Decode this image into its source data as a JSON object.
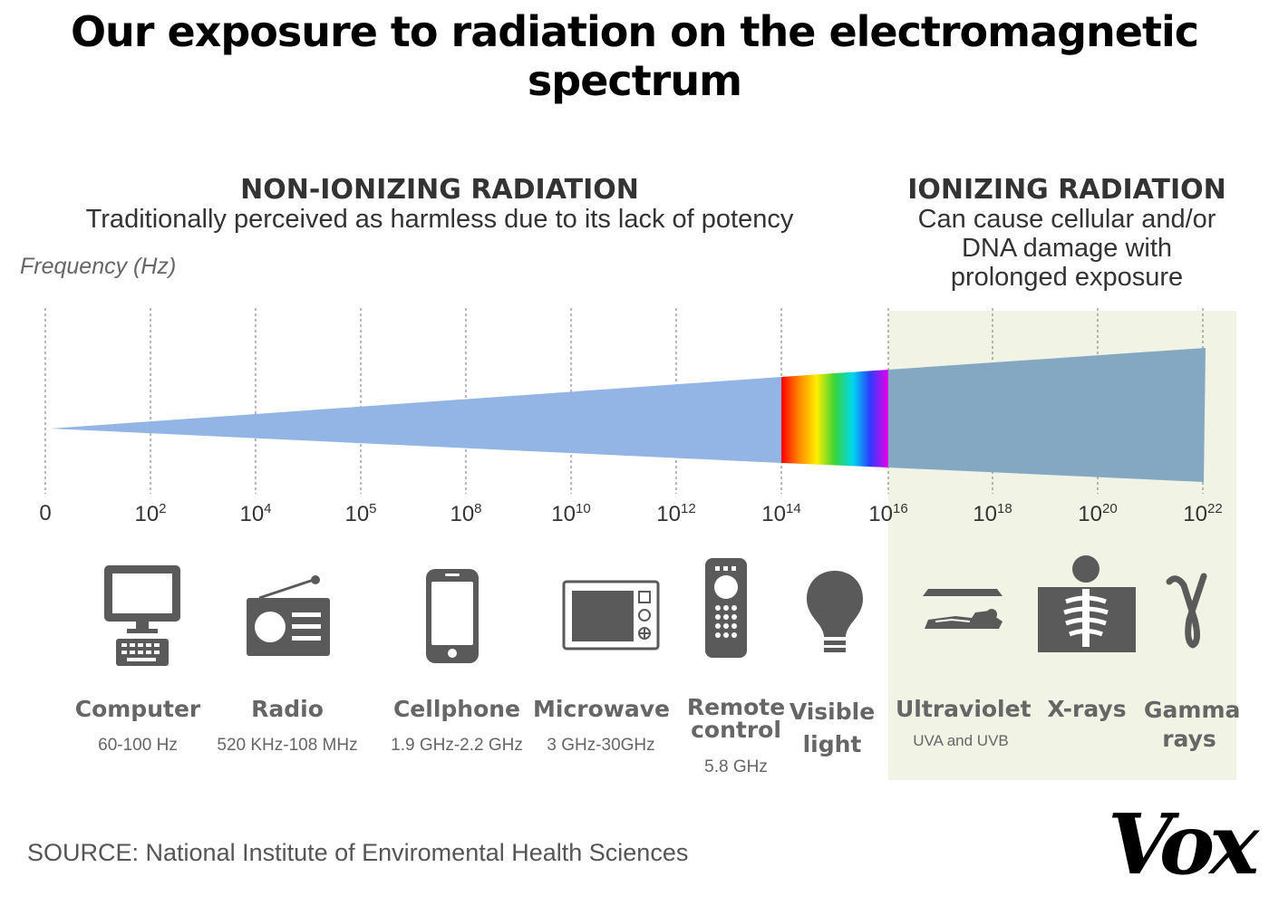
{
  "title": "Our exposure to radiation on the electromagnetic spectrum",
  "non_ionizing": {
    "heading": "NON-IONIZING RADIATION",
    "subtitle": "Traditionally perceived as harmless due to its lack of potency"
  },
  "ionizing": {
    "heading": "IONIZING RADIATION",
    "subtitle_lines": [
      "Can cause cellular and/or",
      "DNA damage with",
      "prolonged exposure"
    ]
  },
  "axis_label": "Frequency (Hz)",
  "ticks": [
    {
      "base": "0",
      "exp": ""
    },
    {
      "base": "10",
      "exp": "2"
    },
    {
      "base": "10",
      "exp": "4"
    },
    {
      "base": "10",
      "exp": "5"
    },
    {
      "base": "10",
      "exp": "8"
    },
    {
      "base": "10",
      "exp": "10"
    },
    {
      "base": "10",
      "exp": "12"
    },
    {
      "base": "10",
      "exp": "14"
    },
    {
      "base": "10",
      "exp": "16"
    },
    {
      "base": "10",
      "exp": "18"
    },
    {
      "base": "10",
      "exp": "20"
    },
    {
      "base": "10",
      "exp": "22"
    }
  ],
  "sources": [
    {
      "name_lines": [
        "Computer"
      ],
      "detail": "60-100 Hz",
      "icon": "computer-icon"
    },
    {
      "name_lines": [
        "Radio"
      ],
      "detail": "520 KHz-108 MHz",
      "icon": "radio-icon"
    },
    {
      "name_lines": [
        "Cellphone"
      ],
      "detail": "1.9 GHz-2.2 GHz",
      "icon": "cellphone-icon"
    },
    {
      "name_lines": [
        "Microwave"
      ],
      "detail": "3 GHz-30GHz",
      "icon": "microwave-icon"
    },
    {
      "name_lines": [
        "Remote",
        "control"
      ],
      "detail": "5.8 GHz",
      "icon": "remote-control-icon"
    },
    {
      "name_lines": [
        "Visible",
        "light"
      ],
      "detail": "",
      "icon": "lightbulb-icon"
    },
    {
      "name_lines": [
        "Ultraviolet"
      ],
      "detail": "UVA and UVB",
      "icon": "tanning-bed-icon"
    },
    {
      "name_lines": [
        "X-rays"
      ],
      "detail": "",
      "icon": "xray-icon"
    },
    {
      "name_lines": [
        "Gamma",
        "rays"
      ],
      "detail": "",
      "icon": "gamma-icon"
    }
  ],
  "colors": {
    "wedge": "#93b5e6",
    "ionizing_wedge": "#85a8c2",
    "ionizing_background": "#f1f3e5",
    "icon": "#5a5a5a"
  },
  "source_note": "SOURCE: National Institute of Enviromental Health Sciences",
  "brand": "Vox"
}
